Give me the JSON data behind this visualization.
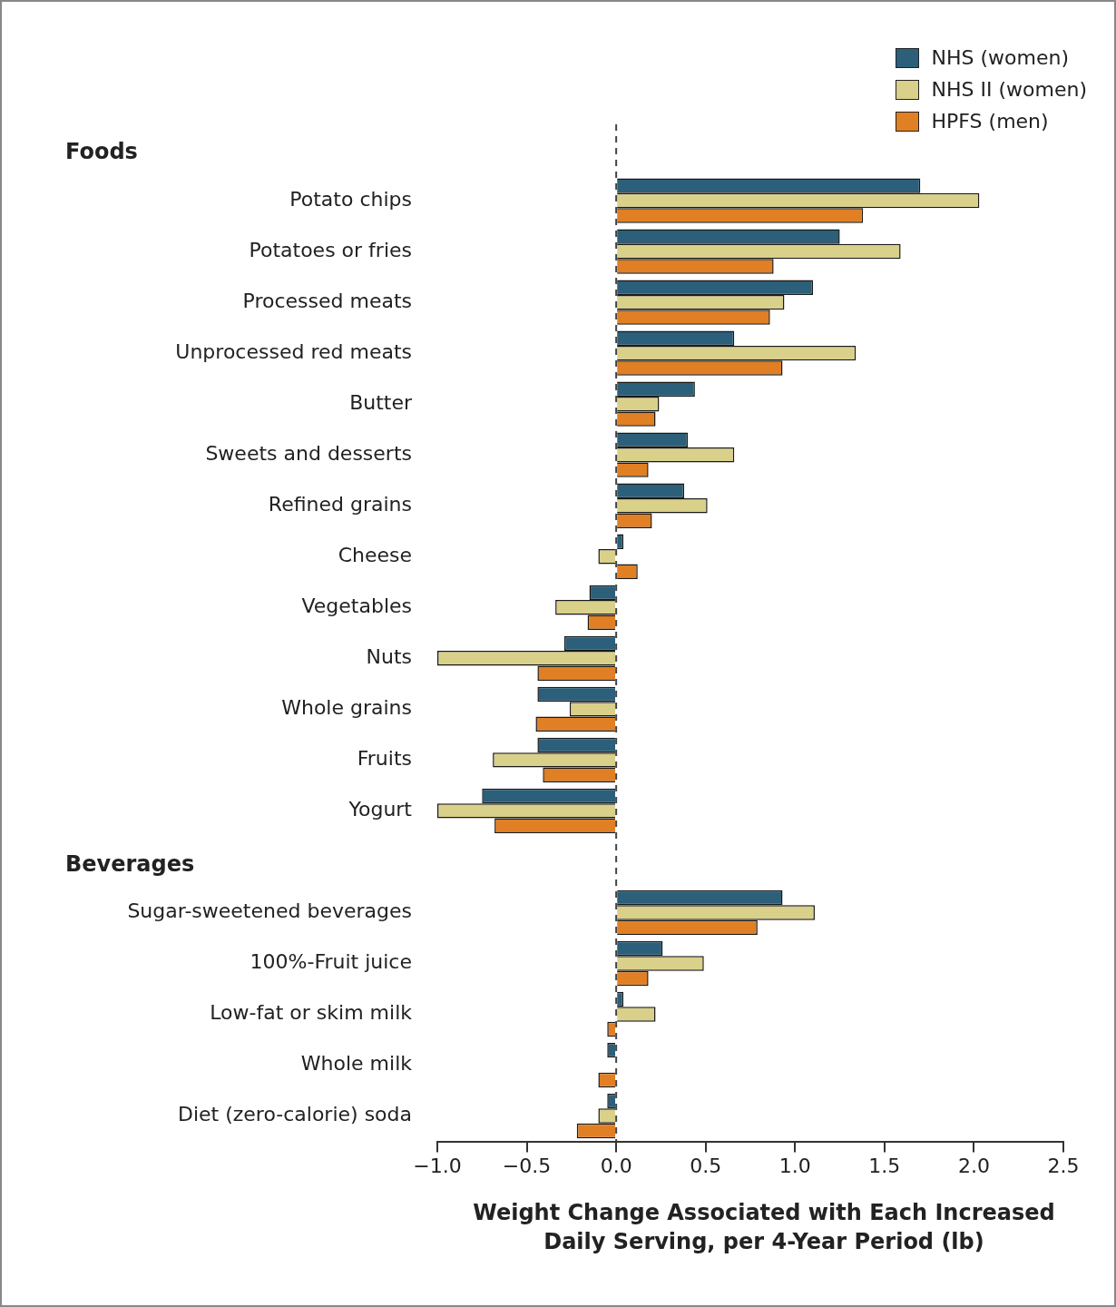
{
  "chart_data": {
    "type": "bar",
    "orientation": "horizontal",
    "categories": [
      null,
      "Potato chips",
      "Potatoes or fries",
      "Processed meats",
      "Unprocessed red meats",
      "Butter",
      "Sweets and desserts",
      "Refined grains",
      "Cheese",
      "Vegetables",
      "Nuts",
      "Whole grains",
      "Fruits",
      "Yogurt",
      null,
      "Sugar-sweetened beverages",
      "100%-Fruit juice",
      "Low-fat or skim milk",
      "Whole milk",
      "Diet (zero-calorie) soda"
    ],
    "series": [
      {
        "name": "NHS (women)",
        "color": "#2b5f7a",
        "values": [
          null,
          1.7,
          1.25,
          1.1,
          0.66,
          0.44,
          0.4,
          0.38,
          0.04,
          -0.15,
          -0.29,
          -0.44,
          -0.44,
          -0.75,
          null,
          0.93,
          0.26,
          0.04,
          -0.05,
          -0.05
        ]
      },
      {
        "name": "NHS II (women)",
        "color": "#d9d08a",
        "values": [
          null,
          2.03,
          1.59,
          0.94,
          1.34,
          0.24,
          0.66,
          0.51,
          -0.1,
          -0.34,
          -1.0,
          -0.26,
          -0.69,
          -1.0,
          null,
          1.11,
          0.49,
          0.22,
          null,
          -0.1
        ]
      },
      {
        "name": "HPFS (men)",
        "color": "#e07f24",
        "values": [
          null,
          1.38,
          0.88,
          0.86,
          0.93,
          0.22,
          0.18,
          0.2,
          0.12,
          -0.16,
          -0.44,
          -0.45,
          -0.41,
          -0.68,
          null,
          0.79,
          0.18,
          -0.05,
          -0.1,
          -0.22
        ]
      }
    ],
    "xlim": [
      -1.0,
      2.5
    ],
    "xticks": [
      {
        "value": -1,
        "label": "−1.0"
      },
      {
        "value": -0.5,
        "label": "−0.5"
      },
      {
        "value": 0,
        "label": "0.0"
      },
      {
        "value": 0.5,
        "label": "0.5"
      },
      {
        "value": 1,
        "label": "1.0"
      },
      {
        "value": 1.5,
        "label": "1.5"
      },
      {
        "value": 2,
        "label": "2.0"
      },
      {
        "value": 2.5,
        "label": "2.5"
      }
    ],
    "xlabel": "Weight Change Associated with Each Increased Daily Serving, per 4-Year Period (lb)",
    "annotations": [
      "Foods",
      "Beverages"
    ],
    "ref_lines": [
      {
        "axis": "x",
        "value": 0,
        "line_style": "dashed",
        "color": "#444444"
      }
    ],
    "legend": "top right"
  }
}
